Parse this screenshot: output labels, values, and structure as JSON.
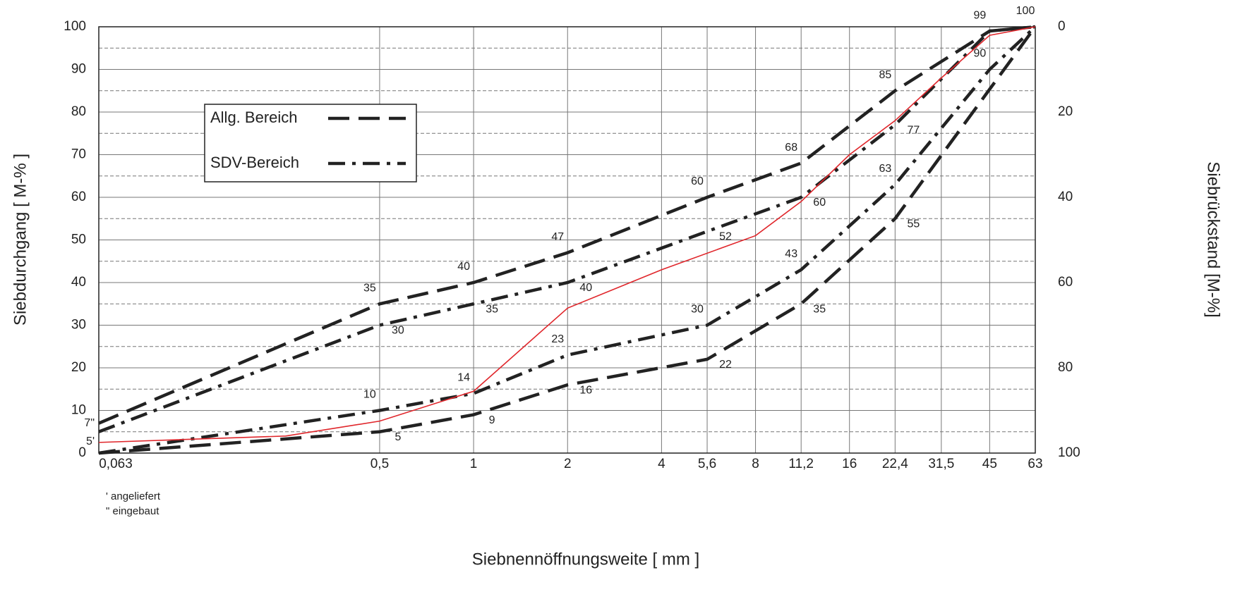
{
  "chart_data": {
    "type": "line",
    "xlabel": "Siebnennöffnungsweite [ mm ]",
    "ylabel": "Siebdurchgang [ M-% ]",
    "y2label": "Siebrückstand [M-%]",
    "xscale": "log",
    "xlim": [
      0.063,
      63
    ],
    "xticks": [
      {
        "value": 0.063,
        "label": "0,063"
      },
      {
        "value": 0.5,
        "label": "0,5"
      },
      1,
      2,
      4,
      {
        "value": 5.6,
        "label": "5,6"
      },
      8,
      {
        "value": 11.2,
        "label": "11,2"
      },
      16,
      {
        "value": 22.4,
        "label": "22,4"
      },
      {
        "value": 31.5,
        "label": "31,5"
      },
      45,
      63
    ],
    "ylim": [
      0,
      100
    ],
    "yticks": [
      0,
      10,
      20,
      30,
      40,
      50,
      60,
      70,
      80,
      90,
      100
    ],
    "yminorticks": [
      5,
      15,
      25,
      35,
      45,
      55,
      65,
      75,
      85,
      95
    ],
    "y2lim": [
      100,
      0
    ],
    "y2ticks": [
      0,
      20,
      40,
      60,
      80,
      100
    ],
    "grid": true,
    "legend": "upper left",
    "series": [
      {
        "name": "Allg. Bereich",
        "style": "dashed",
        "color": "#222222",
        "lines": [
          {
            "x": [
              0.063,
              0.5,
              1,
              2,
              5.6,
              11.2,
              22.4,
              45,
              63
            ],
            "values": [
              7,
              35,
              40,
              47,
              60,
              68,
              85,
              99,
              100
            ],
            "value_labels": [
              "7\"",
              "35",
              "40",
              "47",
              "60",
              "68",
              "85",
              "99",
              "100"
            ]
          },
          {
            "x": [
              0.063,
              0.5,
              1,
              2,
              5.6,
              11.2,
              22.4,
              63
            ],
            "values": [
              0,
              5,
              9,
              16,
              22,
              35,
              55,
              100
            ],
            "value_labels": [
              null,
              "5",
              "9",
              "16",
              "22",
              "35",
              "55",
              null
            ]
          }
        ]
      },
      {
        "name": "SDV-Bereich",
        "style": "dashdot",
        "color": "#222222",
        "lines": [
          {
            "x": [
              0.063,
              0.5,
              1,
              2,
              5.6,
              11.2,
              22.4,
              45,
              63
            ],
            "values": [
              5,
              30,
              35,
              40,
              52,
              60,
              77,
              99,
              100
            ],
            "value_labels": [
              "5'",
              "30",
              "35",
              "40",
              "52",
              "60",
              "77",
              null,
              null
            ]
          },
          {
            "x": [
              0.063,
              0.5,
              1,
              2,
              5.6,
              11.2,
              22.4,
              45,
              63
            ],
            "values": [
              0,
              10,
              14,
              23,
              30,
              43,
              63,
              90,
              100
            ],
            "value_labels": [
              null,
              "10",
              "14",
              "23",
              "30",
              "43",
              "63",
              "90",
              null
            ]
          }
        ]
      },
      {
        "style": "solid",
        "color": "#e0262b",
        "lines": [
          {
            "x": [
              0.063,
              0.25,
              0.5,
              1,
              2,
              4,
              8,
              11.2,
              16,
              22.4,
              31.5,
              45,
              63
            ],
            "values": [
              2.5,
              4,
              7.5,
              14.5,
              34,
              43,
              51,
              59,
              70,
              78,
              88,
              98,
              100
            ]
          }
        ]
      }
    ],
    "notes": [
      "' angeliefert",
      "\" eingebaut"
    ]
  }
}
